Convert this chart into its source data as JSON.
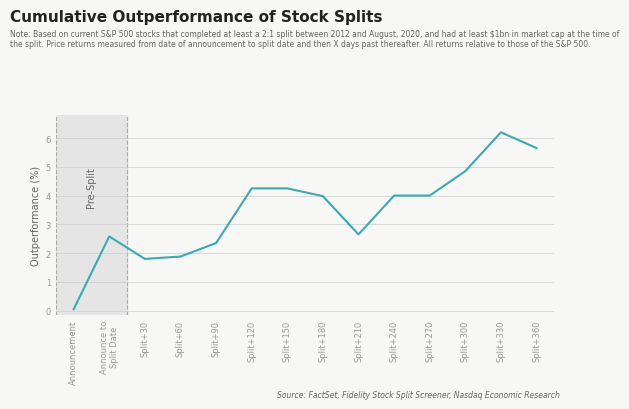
{
  "title": "Cumulative Outperformance of Stock Splits",
  "note_line1": "Note: Based on current S&P 500 stocks that completed at least a 2:1 split between 2012 and August, 2020, and had at least $1bn in market cap at the time of",
  "note_line2": "the split. Price returns measured from date of announcement to split date and then X days past thereafter. All returns relative to those of the S&P 500.",
  "source": "Source: FactSet, Fidelity Stock Split Screener, Nasdaq Economic Research",
  "ylabel": "Outperformance (%)",
  "x_labels": [
    "Announcement",
    "Announce to\nSplit Date",
    "Split+30",
    "Split+60",
    "Split+90",
    "Split+120",
    "Split+150",
    "Split+180",
    "Split+210",
    "Split+240",
    "Split+270",
    "Split+300",
    "Split+330",
    "Split+360"
  ],
  "y_values": [
    0.05,
    2.58,
    1.8,
    1.88,
    2.35,
    4.25,
    4.25,
    3.98,
    2.65,
    4.0,
    4.0,
    4.85,
    6.2,
    5.65
  ],
  "ylim": [
    -0.15,
    6.8
  ],
  "yticks": [
    0,
    1,
    2,
    3,
    4,
    5,
    6
  ],
  "line_color": "#3aabb0",
  "line_width": 1.5,
  "pre_split_label": "Pre-Split",
  "pre_split_box_color": "#e5e5e5",
  "pre_split_box_edge_color": "#aaaaaa",
  "background_color": "#f7f7f5",
  "grid_color": "#cccccc",
  "title_fontsize": 11,
  "note_fontsize": 5.5,
  "source_fontsize": 5.5,
  "ylabel_fontsize": 7,
  "tick_fontsize": 6,
  "pre_split_fontsize": 7,
  "title_color": "#222222",
  "text_color": "#666666",
  "tick_color": "#999999"
}
